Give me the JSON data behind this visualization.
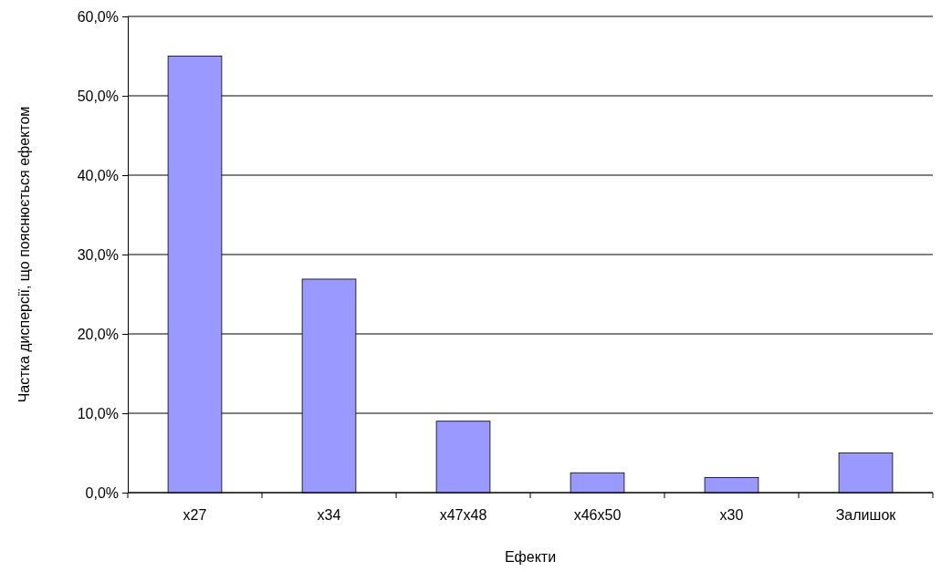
{
  "chart_data": {
    "type": "bar",
    "xlabel": "Ефекти",
    "ylabel": "Частка дисперсії, що пояснюється ефектом",
    "categories": [
      "x27",
      "x34",
      "x47x48",
      "x46x50",
      "x30",
      "Залишок"
    ],
    "values": [
      55.0,
      26.9,
      9.0,
      2.5,
      1.9,
      5.0
    ],
    "color": "#9999ff",
    "ylim": [
      0,
      60
    ],
    "yticks": [
      {
        "value": 0,
        "label": "0,0%"
      },
      {
        "value": 10,
        "label": "10,0%"
      },
      {
        "value": 20,
        "label": "20,0%"
      },
      {
        "value": 30,
        "label": "30,0%"
      },
      {
        "value": 40,
        "label": "40,0%"
      },
      {
        "value": 50,
        "label": "50,0%"
      },
      {
        "value": 60,
        "label": "60,0%"
      }
    ],
    "grid": "y"
  }
}
